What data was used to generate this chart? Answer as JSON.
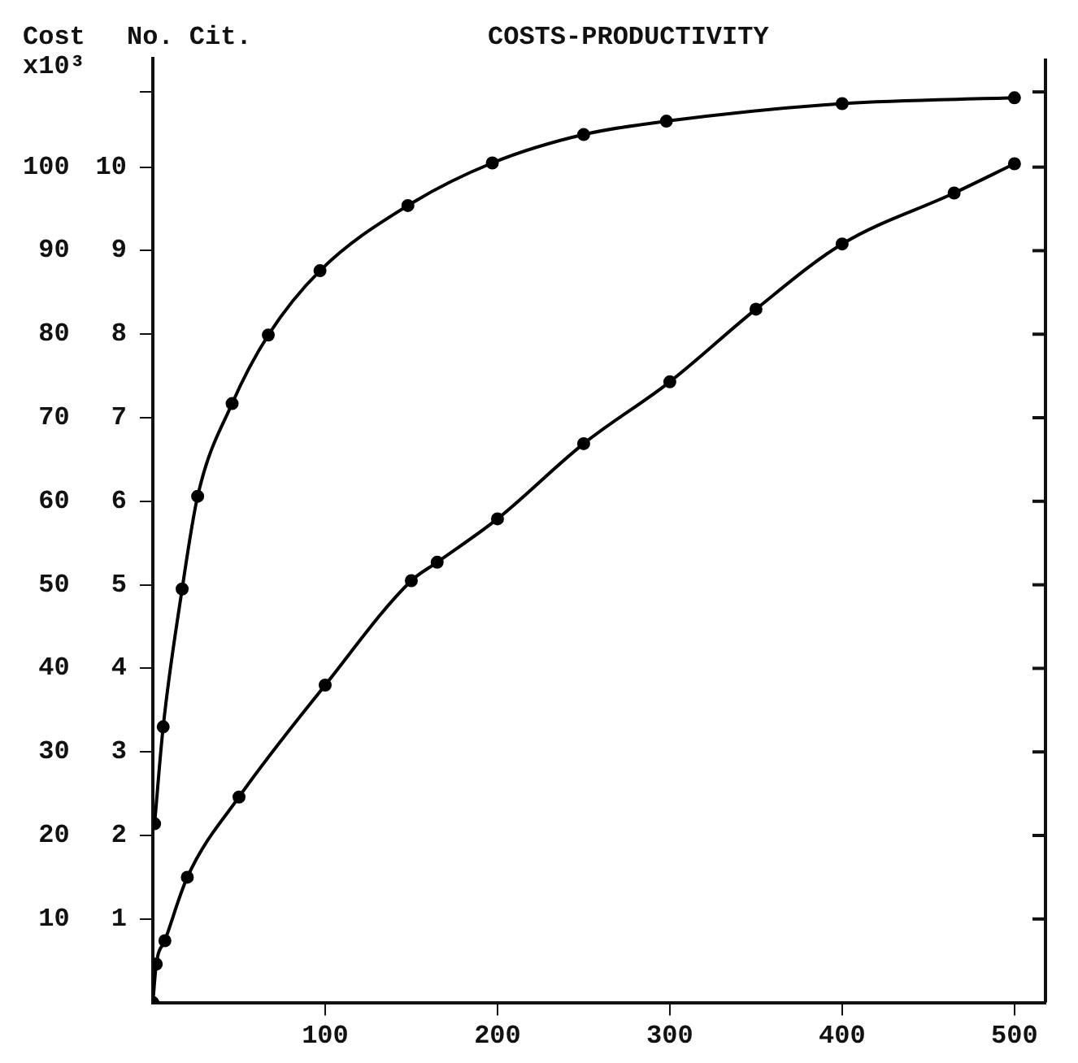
{
  "chart_data": {
    "type": "line",
    "title": "COSTS-PRODUCTIVITY",
    "ylabel": "Cost x10³",
    "y2label": "No. Cit.",
    "xlim": [
      0,
      518
    ],
    "xticks": [
      100,
      200,
      300,
      400,
      500
    ],
    "ylim": [
      0,
      113
    ],
    "yticks": [
      10,
      20,
      30,
      40,
      50,
      60,
      70,
      80,
      90,
      100
    ],
    "y2lim": [
      0,
      11.3
    ],
    "y2ticks": [
      1,
      2,
      3,
      4,
      5,
      6,
      7,
      8,
      9,
      10,
      {
        "value": 10.9,
        "label": null
      }
    ],
    "series": [
      {
        "color": "#000000",
        "axis": "y",
        "x": [
          0,
          2,
          7,
          20,
          50,
          100,
          150,
          165,
          200,
          250,
          300,
          350,
          400,
          465,
          500
        ],
        "values": [
          0,
          4.6,
          7.4,
          15,
          24.6,
          38,
          50.5,
          52.7,
          57.9,
          66.9,
          74.3,
          83,
          90.8,
          96.9,
          100.4
        ]
      },
      {
        "color": "#000000",
        "axis": "y2",
        "x": [
          1,
          6,
          17,
          26,
          46,
          67,
          97,
          148,
          197,
          250,
          298,
          400,
          500
        ],
        "values": [
          2.14,
          3.3,
          4.95,
          6.06,
          7.17,
          7.99,
          8.76,
          9.54,
          10.05,
          10.39,
          10.55,
          10.76,
          10.83
        ]
      }
    ],
    "marker": "circle",
    "line_style": "solid",
    "grid": false,
    "legend": false
  }
}
